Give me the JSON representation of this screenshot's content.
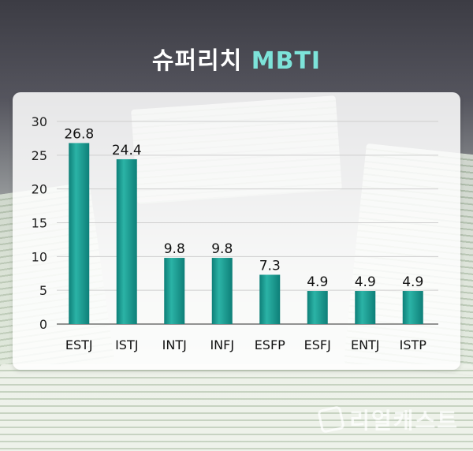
{
  "header": {
    "title_main": "슈퍼리치",
    "title_accent": "MBTI"
  },
  "brand": {
    "watermark": "리얼캐스트"
  },
  "colors": {
    "bar_top": "#2bb3a6",
    "bar_bottom": "#0e7f78",
    "accent": "#7de3d9"
  },
  "chart_data": {
    "type": "bar",
    "title": "슈퍼리치 MBTI",
    "categories": [
      "ESTJ",
      "ISTJ",
      "INTJ",
      "INFJ",
      "ESFP",
      "ESFJ",
      "ENTJ",
      "ISTP"
    ],
    "values": [
      26.8,
      24.4,
      9.8,
      9.8,
      7.3,
      4.9,
      4.9,
      4.9
    ],
    "data_labels": [
      "26.8",
      "24.4",
      "9.8",
      "9.8",
      "7.3",
      "4.9",
      "4.9",
      "4.9"
    ],
    "ylim": [
      0,
      30
    ],
    "yticks": [
      0,
      5,
      10,
      15,
      20,
      25,
      30
    ],
    "xlabel": "",
    "ylabel": "",
    "grid": true,
    "legend": "none"
  }
}
